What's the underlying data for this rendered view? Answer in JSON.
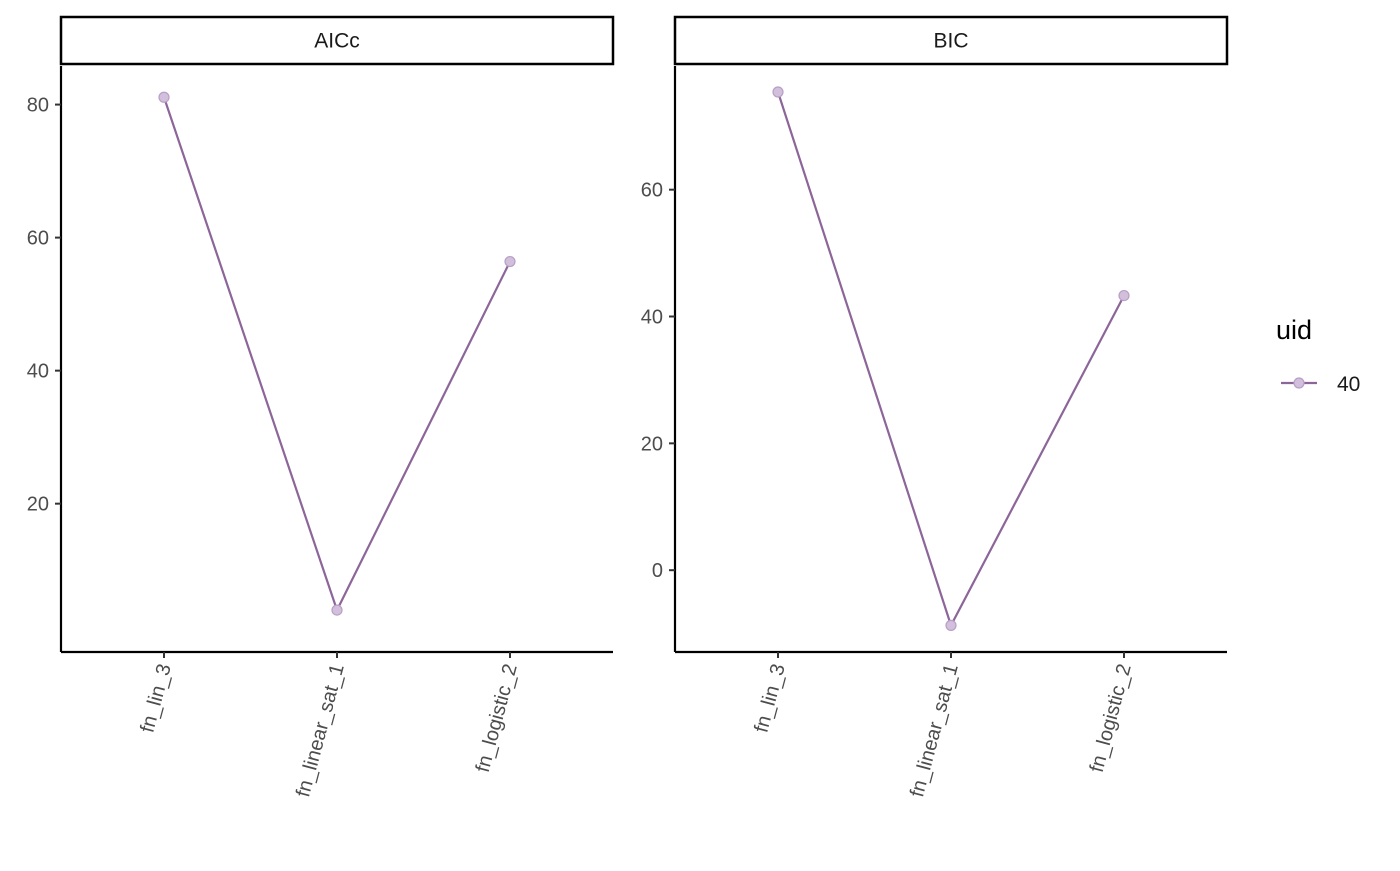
{
  "chart_data": {
    "type": "line",
    "facets": [
      "AICc",
      "BIC"
    ],
    "categories": [
      "fn_lin_3",
      "fn_linear_sat_1",
      "fn_logistic_2"
    ],
    "panels": [
      {
        "facet": "AICc",
        "yticks": [
          20,
          40,
          60,
          80
        ],
        "ylim": [
          -2.3,
          85.8
        ],
        "series": [
          {
            "name": "40",
            "values": [
              81.1,
              4.0,
              56.4
            ]
          }
        ]
      },
      {
        "facet": "BIC",
        "yticks": [
          0,
          20,
          40,
          60
        ],
        "ylim": [
          -12.9,
          79.5
        ],
        "series": [
          {
            "name": "40",
            "values": [
              75.4,
              -8.7,
              43.3
            ]
          }
        ]
      }
    ],
    "legend": {
      "title": "uid",
      "entries": [
        "40"
      ],
      "placement": "right"
    },
    "x_tick_rotation_deg": 75,
    "grid": false,
    "colors": {
      "line": "#8c6699",
      "point_fill": "#d2bfdc",
      "point_stroke": "#b89fc6",
      "axis": "#000000"
    }
  }
}
